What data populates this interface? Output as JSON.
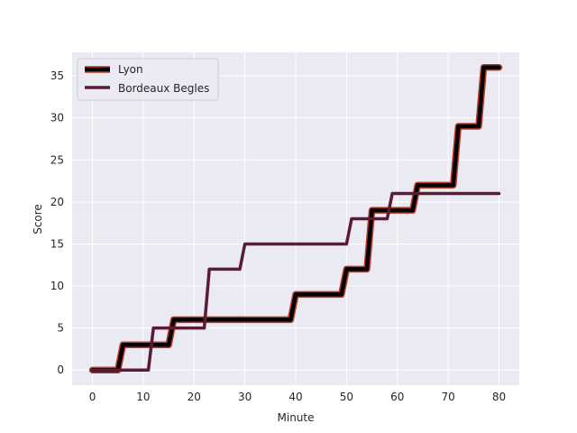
{
  "chart_data": {
    "type": "line",
    "title": "",
    "xlabel": "Minute",
    "ylabel": "Score",
    "xlim": [
      -4,
      84
    ],
    "ylim": [
      -1.8,
      37.8
    ],
    "xticks": [
      0,
      10,
      20,
      30,
      40,
      50,
      60,
      70,
      80
    ],
    "yticks": [
      0,
      5,
      10,
      15,
      20,
      25,
      30,
      35
    ],
    "grid": true,
    "legend_position": "top-left",
    "background_color": "#eaeaf2",
    "grid_color": "#ffffff",
    "series": [
      {
        "name": "Lyon",
        "color": "#000000",
        "outline_color": "#c0392b",
        "style": "thick",
        "x": [
          0,
          5,
          6,
          15,
          16,
          39,
          40,
          49,
          50,
          54,
          55,
          59,
          60,
          63,
          64,
          71,
          72,
          76,
          77,
          80
        ],
        "y": [
          0,
          0,
          3,
          3,
          6,
          6,
          9,
          9,
          12,
          12,
          19,
          19,
          19,
          19,
          22,
          22,
          29,
          29,
          36,
          36
        ]
      },
      {
        "name": "Bordeaux Begles",
        "color": "#5b1a35",
        "style": "normal",
        "x": [
          0,
          11,
          12,
          22,
          23,
          29,
          30,
          50,
          51,
          58,
          59,
          80
        ],
        "y": [
          0,
          0,
          5,
          5,
          12,
          12,
          15,
          15,
          18,
          18,
          21,
          21
        ]
      }
    ]
  }
}
